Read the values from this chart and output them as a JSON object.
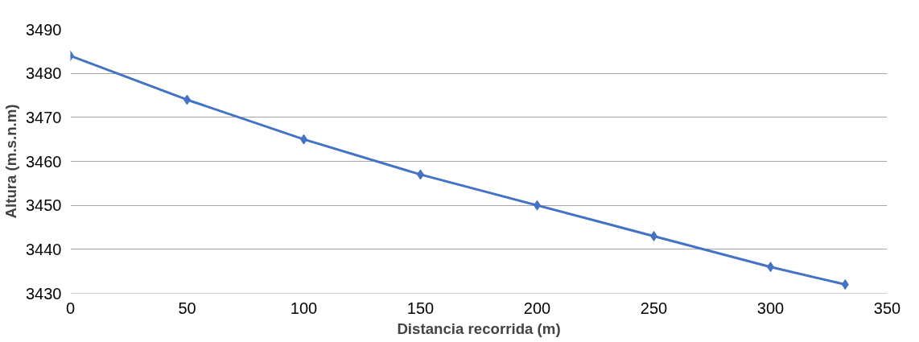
{
  "chart_data": {
    "type": "line",
    "xlabel": "Distancia recorrida (m)",
    "ylabel": "Altura (m.s.n.m)",
    "x": [
      0,
      50,
      100,
      150,
      200,
      250,
      300,
      332
    ],
    "series": [
      {
        "color": "#4472c4",
        "values": [
          3484,
          3474,
          3465,
          3457,
          3450,
          3443,
          3436,
          3432
        ]
      }
    ],
    "xlim": [
      0,
      350
    ],
    "xticks": [
      0,
      50,
      100,
      150,
      200,
      250,
      300,
      350
    ],
    "ylim": [
      3430,
      3490
    ],
    "yticks": [
      3430,
      3440,
      3450,
      3460,
      3470,
      3480,
      3490
    ],
    "grid": "y",
    "marker": "diamond",
    "line_style": "solid"
  }
}
